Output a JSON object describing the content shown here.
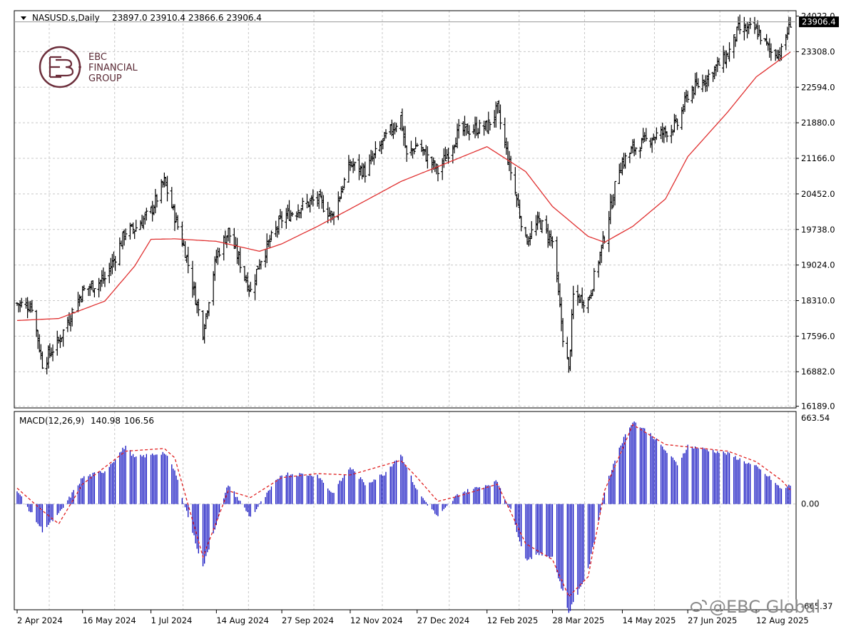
{
  "header": {
    "symbol_label": "NASUSD.s,Daily",
    "ohlc": "23897.0 23910.4 23866.6 23906.4"
  },
  "logo": {
    "line1": "EBC",
    "line2": "FINANCIAL",
    "line3": "GROUP"
  },
  "watermark": "@EBC Global",
  "colors": {
    "price_bars": "#000000",
    "ma_line": "#e03030",
    "macd_hist": "#1010c0",
    "macd_signal": "#e02020",
    "grid": "#c8c8c8",
    "price_tag_bg": "#000000"
  },
  "icons": {
    "dropdown": "triangle-down-icon",
    "logo": "ebc-logo-icon",
    "watermark": "weibo-icon"
  },
  "chart_data": [
    {
      "type": "ohlc",
      "symbol": "NASUSD.s",
      "timeframe": "Daily",
      "last_price": "23906.4",
      "y_ticks": [
        "24022.0",
        "23308.0",
        "22594.0",
        "21880.0",
        "21166.0",
        "20452.0",
        "19738.0",
        "19024.0",
        "18310.0",
        "17596.0",
        "16882.0",
        "16189.0"
      ],
      "y_tick_values": [
        24022,
        23308,
        22594,
        21880,
        21166,
        20452,
        19738,
        19024,
        18310,
        17596,
        16882,
        16189
      ],
      "ylim": [
        16155,
        24130
      ],
      "x_labels": [
        "2 Apr 2024",
        "16 May 2024",
        "1 Jul 2024",
        "14 Aug 2024",
        "27 Sep 2024",
        "12 Nov 2024",
        "27 Dec 2024",
        "12 Feb 2025",
        "28 Mar 2025",
        "14 May 2025",
        "27 Jun 2025",
        "12 Aug 2025"
      ],
      "close_series": [
        [
          "2024-04-02",
          18250
        ],
        [
          "2024-04-12",
          18200
        ],
        [
          "2024-04-19",
          17050
        ],
        [
          "2024-04-30",
          17500
        ],
        [
          "2024-05-10",
          18150
        ],
        [
          "2024-05-16",
          18500
        ],
        [
          "2024-05-31",
          18750
        ],
        [
          "2024-06-07",
          19200
        ],
        [
          "2024-06-14",
          19700
        ],
        [
          "2024-06-20",
          19750
        ],
        [
          "2024-07-01",
          20100
        ],
        [
          "2024-07-10",
          20700
        ],
        [
          "2024-07-17",
          20000
        ],
        [
          "2024-07-24",
          19300
        ],
        [
          "2024-08-05",
          17700
        ],
        [
          "2024-08-14",
          19200
        ],
        [
          "2024-08-22",
          19700
        ],
        [
          "2024-09-06",
          18500
        ],
        [
          "2024-09-12",
          19100
        ],
        [
          "2024-09-27",
          19950
        ],
        [
          "2024-10-10",
          20200
        ],
        [
          "2024-10-21",
          20350
        ],
        [
          "2024-10-31",
          20000
        ],
        [
          "2024-11-12",
          21050
        ],
        [
          "2024-11-22",
          20900
        ],
        [
          "2024-12-05",
          21550
        ],
        [
          "2024-12-16",
          22000
        ],
        [
          "2024-12-20",
          21200
        ],
        [
          "2024-12-27",
          21450
        ],
        [
          "2025-01-10",
          20900
        ],
        [
          "2025-01-24",
          21700
        ],
        [
          "2025-02-12",
          21800
        ],
        [
          "2025-02-19",
          22150
        ],
        [
          "2025-02-28",
          20900
        ],
        [
          "2025-03-10",
          19500
        ],
        [
          "2025-03-19",
          19900
        ],
        [
          "2025-03-28",
          19500
        ],
        [
          "2025-04-04",
          17600
        ],
        [
          "2025-04-08",
          16900
        ],
        [
          "2025-04-11",
          18400
        ],
        [
          "2025-04-21",
          18300
        ],
        [
          "2025-05-02",
          19600
        ],
        [
          "2025-05-12",
          21000
        ],
        [
          "2025-05-21",
          21350
        ],
        [
          "2025-06-03",
          21600
        ],
        [
          "2025-06-12",
          21700
        ],
        [
          "2025-06-20",
          21850
        ],
        [
          "2025-06-27",
          22450
        ],
        [
          "2025-07-10",
          22800
        ],
        [
          "2025-07-24",
          23250
        ],
        [
          "2025-07-31",
          23750
        ],
        [
          "2025-08-12",
          23750
        ],
        [
          "2025-08-22",
          23300
        ],
        [
          "2025-08-29",
          23300
        ],
        [
          "2025-09-04",
          23906
        ]
      ],
      "ma_series": [
        [
          "2024-04-02",
          17910
        ],
        [
          "2024-04-30",
          17950
        ],
        [
          "2024-05-31",
          18300
        ],
        [
          "2024-06-20",
          19000
        ],
        [
          "2024-07-01",
          19540
        ],
        [
          "2024-07-17",
          19550
        ],
        [
          "2024-08-14",
          19500
        ],
        [
          "2024-09-12",
          19300
        ],
        [
          "2024-09-27",
          19450
        ],
        [
          "2024-10-21",
          19800
        ],
        [
          "2024-11-12",
          20150
        ],
        [
          "2024-12-16",
          20700
        ],
        [
          "2025-01-10",
          21000
        ],
        [
          "2025-02-12",
          21400
        ],
        [
          "2025-03-10",
          20900
        ],
        [
          "2025-03-28",
          20200
        ],
        [
          "2025-04-21",
          19600
        ],
        [
          "2025-05-02",
          19480
        ],
        [
          "2025-05-21",
          19800
        ],
        [
          "2025-06-12",
          20350
        ],
        [
          "2025-06-27",
          21200
        ],
        [
          "2025-07-24",
          22100
        ],
        [
          "2025-08-12",
          22800
        ],
        [
          "2025-09-04",
          23300
        ]
      ]
    },
    {
      "type": "bar+line",
      "indicator_label": "MACD(12,26,9)",
      "macd_value": "140.98",
      "signal_value": "106.56",
      "y_ticks": [
        "663.54",
        "0.00",
        "-665.37"
      ],
      "y_tick_values": [
        663.54,
        0,
        -665.37
      ],
      "ylim": [
        -800,
        700
      ],
      "macd_series": [
        [
          "2024-04-02",
          100
        ],
        [
          "2024-04-19",
          -200
        ],
        [
          "2024-04-30",
          -80
        ],
        [
          "2024-05-16",
          200
        ],
        [
          "2024-05-31",
          250
        ],
        [
          "2024-06-14",
          440
        ],
        [
          "2024-06-20",
          350
        ],
        [
          "2024-07-10",
          390
        ],
        [
          "2024-07-17",
          250
        ],
        [
          "2024-08-05",
          -480
        ],
        [
          "2024-08-22",
          150
        ],
        [
          "2024-09-06",
          -100
        ],
        [
          "2024-09-27",
          230
        ],
        [
          "2024-10-21",
          220
        ],
        [
          "2024-10-31",
          80
        ],
        [
          "2024-11-12",
          280
        ],
        [
          "2024-11-22",
          150
        ],
        [
          "2024-12-05",
          230
        ],
        [
          "2024-12-16",
          380
        ],
        [
          "2024-12-27",
          100
        ],
        [
          "2025-01-10",
          -100
        ],
        [
          "2025-01-24",
          80
        ],
        [
          "2025-02-19",
          170
        ],
        [
          "2025-02-28",
          -50
        ],
        [
          "2025-03-10",
          -420
        ],
        [
          "2025-03-19",
          -380
        ],
        [
          "2025-03-28",
          -400
        ],
        [
          "2025-04-08",
          -820
        ],
        [
          "2025-04-21",
          -500
        ],
        [
          "2025-05-02",
          100
        ],
        [
          "2025-05-12",
          430
        ],
        [
          "2025-05-21",
          630
        ],
        [
          "2025-06-03",
          520
        ],
        [
          "2025-06-20",
          300
        ],
        [
          "2025-06-27",
          440
        ],
        [
          "2025-07-24",
          380
        ],
        [
          "2025-08-12",
          280
        ],
        [
          "2025-08-22",
          190
        ],
        [
          "2025-08-29",
          110
        ],
        [
          "2025-09-04",
          141
        ]
      ],
      "signal_series": [
        [
          "2024-04-02",
          120
        ],
        [
          "2024-04-19",
          -50
        ],
        [
          "2024-04-30",
          -150
        ],
        [
          "2024-05-16",
          150
        ],
        [
          "2024-06-14",
          400
        ],
        [
          "2024-07-10",
          420
        ],
        [
          "2024-07-17",
          350
        ],
        [
          "2024-08-05",
          -400
        ],
        [
          "2024-08-22",
          100
        ],
        [
          "2024-09-06",
          50
        ],
        [
          "2024-09-27",
          200
        ],
        [
          "2024-10-21",
          230
        ],
        [
          "2024-11-12",
          220
        ],
        [
          "2024-12-16",
          330
        ],
        [
          "2024-12-27",
          200
        ],
        [
          "2025-01-10",
          20
        ],
        [
          "2025-01-24",
          60
        ],
        [
          "2025-02-19",
          150
        ],
        [
          "2025-03-10",
          -300
        ],
        [
          "2025-03-28",
          -420
        ],
        [
          "2025-04-08",
          -700
        ],
        [
          "2025-04-21",
          -550
        ],
        [
          "2025-05-02",
          100
        ],
        [
          "2025-05-21",
          600
        ],
        [
          "2025-06-12",
          450
        ],
        [
          "2025-07-24",
          400
        ],
        [
          "2025-08-12",
          320
        ],
        [
          "2025-08-29",
          180
        ],
        [
          "2025-09-04",
          107
        ]
      ]
    }
  ]
}
